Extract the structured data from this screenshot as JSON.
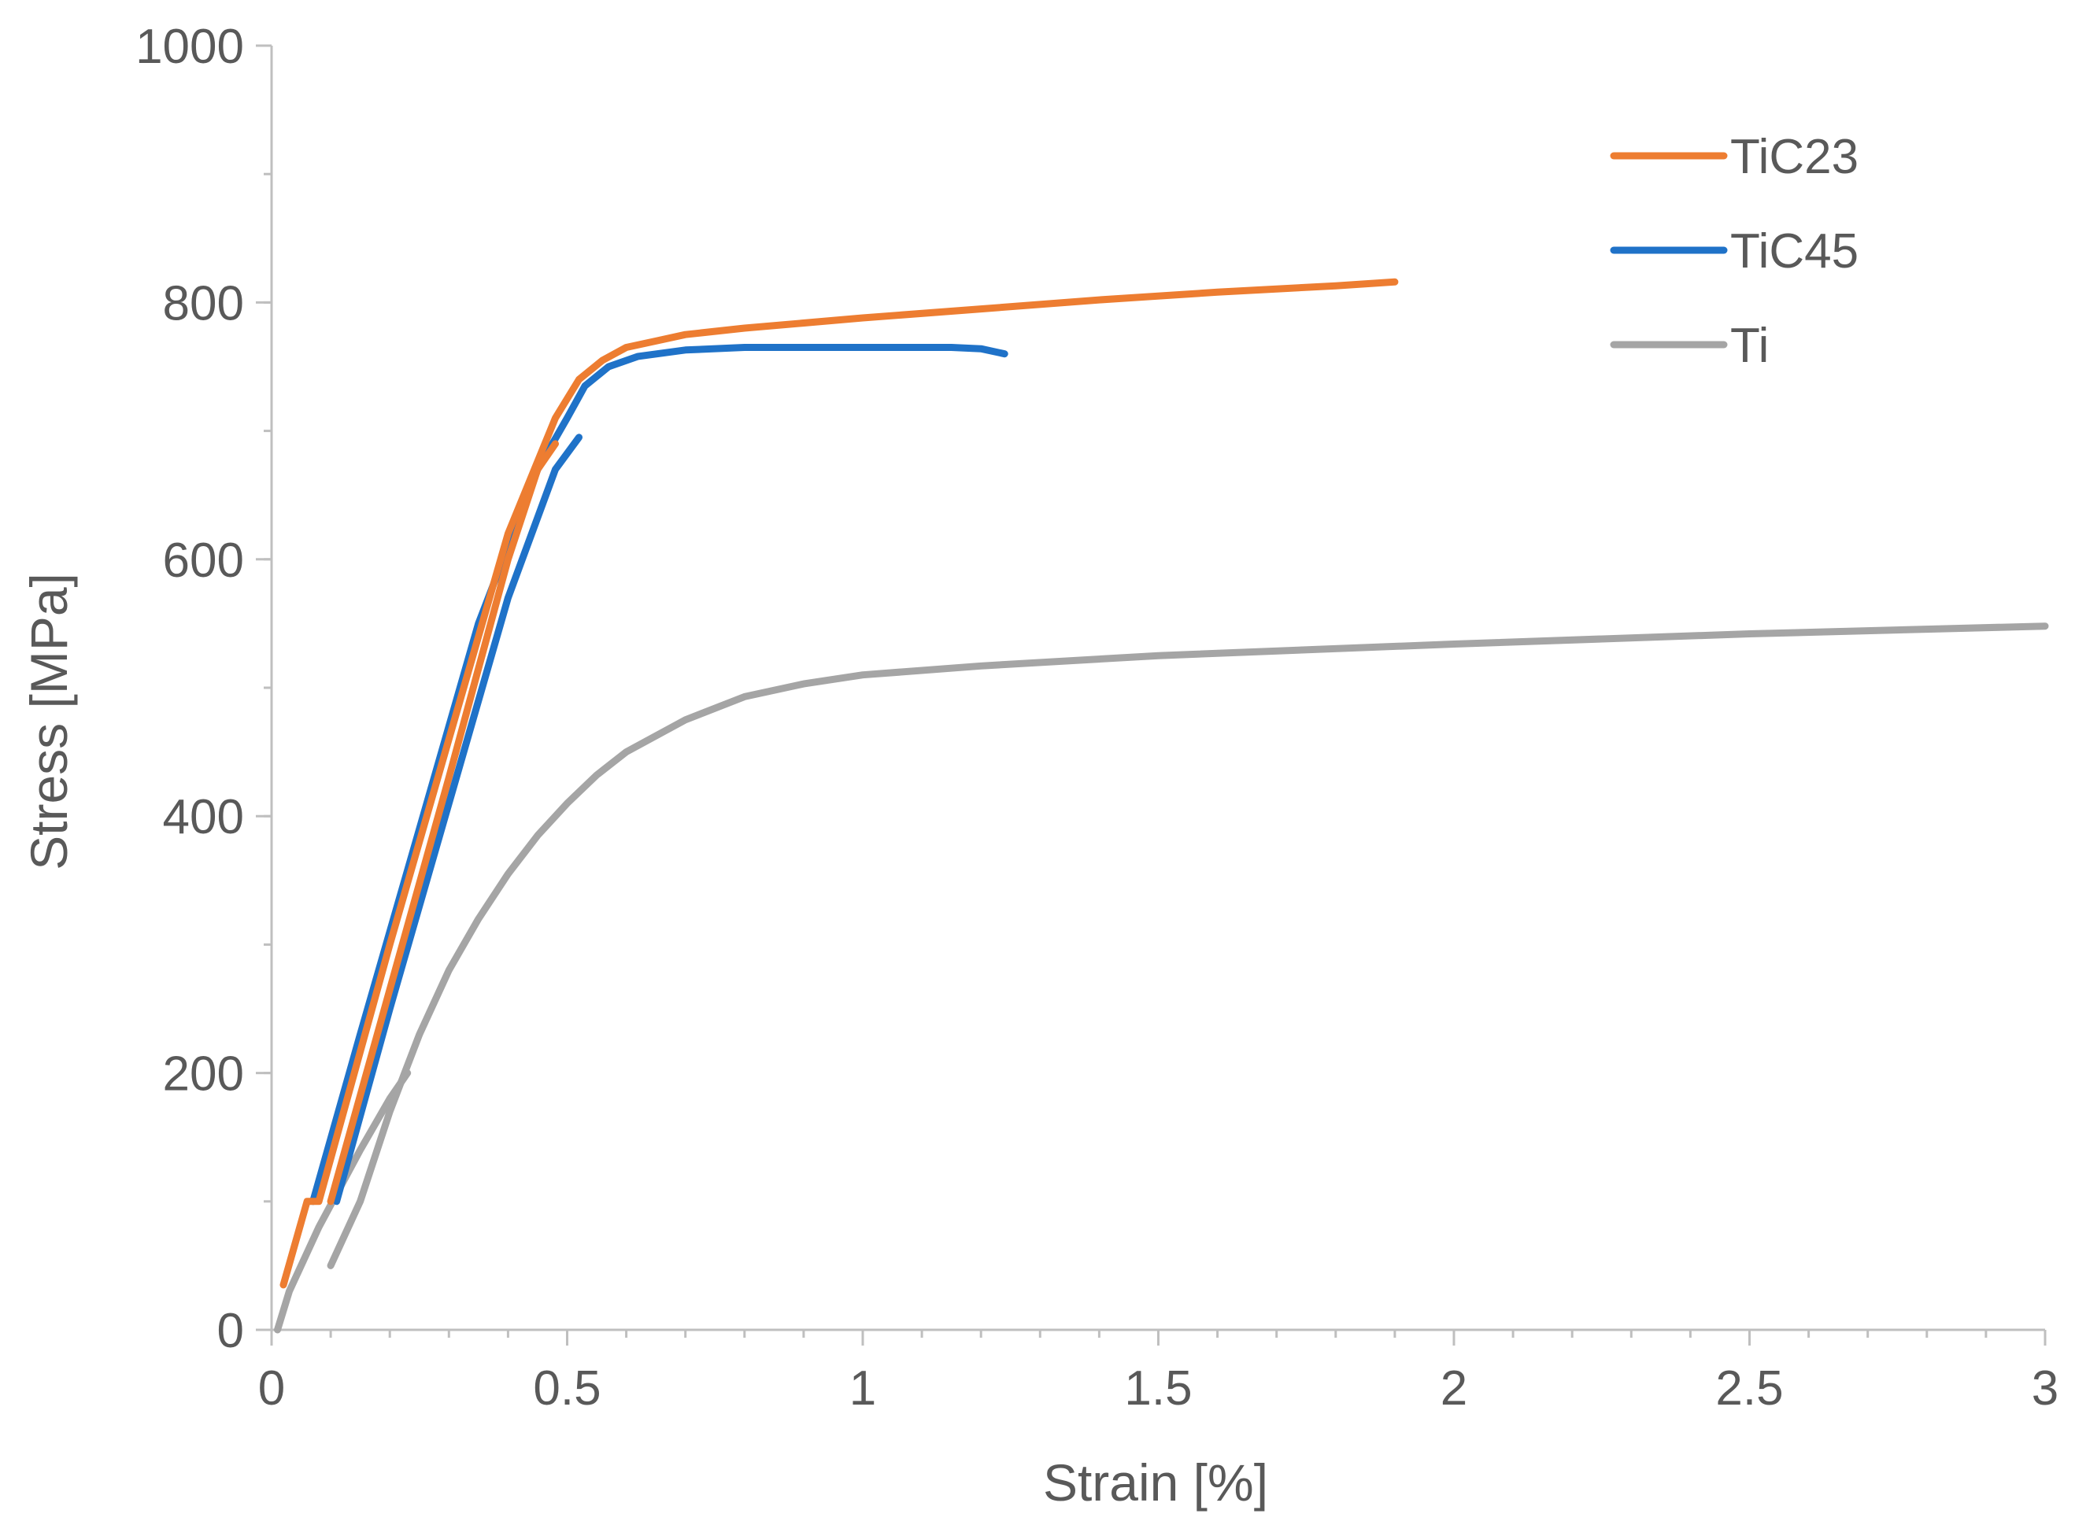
{
  "chart_data": {
    "type": "line",
    "title": "",
    "xlabel": "Strain [%]",
    "ylabel": "Stress [MPa]",
    "xlim": [
      0,
      3
    ],
    "ylim": [
      0,
      1000
    ],
    "xticks": [
      0,
      0.5,
      1,
      1.5,
      2,
      2.5,
      3
    ],
    "xtick_labels": [
      "0",
      "0.5",
      "1",
      "1.5",
      "2",
      "2.5",
      "3"
    ],
    "yticks": [
      0,
      200,
      400,
      600,
      800,
      1000
    ],
    "ytick_labels": [
      "0",
      "200",
      "400",
      "600",
      "800",
      "1000"
    ],
    "x_minor_step": 0.1,
    "y_minor_step": 100,
    "grid": false,
    "legend_position": "top-right",
    "series": [
      {
        "name": "TiC23",
        "color": "#ED7D31",
        "segments": [
          [
            [
              0.02,
              35
            ],
            [
              0.06,
              100
            ],
            [
              0.08,
              100
            ],
            [
              0.2,
              300
            ],
            [
              0.3,
              460
            ],
            [
              0.4,
              620
            ],
            [
              0.48,
              710
            ],
            [
              0.52,
              740
            ],
            [
              0.56,
              755
            ],
            [
              0.6,
              765
            ],
            [
              0.65,
              770
            ],
            [
              0.7,
              775
            ],
            [
              0.8,
              780
            ],
            [
              1.0,
              788
            ],
            [
              1.2,
              795
            ],
            [
              1.4,
              802
            ],
            [
              1.6,
              808
            ],
            [
              1.8,
              813
            ],
            [
              1.9,
              816
            ]
          ],
          [
            [
              0.1,
              100
            ],
            [
              0.2,
              265
            ],
            [
              0.3,
              430
            ],
            [
              0.4,
              600
            ],
            [
              0.45,
              670
            ],
            [
              0.48,
              690
            ]
          ]
        ]
      },
      {
        "name": "TiC45",
        "color": "#1F72C8",
        "segments": [
          [
            [
              0.07,
              100
            ],
            [
              0.15,
              230
            ],
            [
              0.25,
              390
            ],
            [
              0.35,
              550
            ],
            [
              0.45,
              670
            ],
            [
              0.5,
              710
            ],
            [
              0.53,
              735
            ],
            [
              0.57,
              750
            ],
            [
              0.62,
              758
            ],
            [
              0.7,
              763
            ],
            [
              0.8,
              765
            ],
            [
              1.0,
              765
            ],
            [
              1.15,
              765
            ],
            [
              1.2,
              764
            ],
            [
              1.24,
              760
            ]
          ],
          [
            [
              0.11,
              100
            ],
            [
              0.2,
              250
            ],
            [
              0.3,
              410
            ],
            [
              0.4,
              570
            ],
            [
              0.48,
              670
            ],
            [
              0.52,
              695
            ]
          ]
        ]
      },
      {
        "name": "Ti",
        "color": "#A5A5A5",
        "segments": [
          [
            [
              0.01,
              0
            ],
            [
              0.03,
              30
            ],
            [
              0.08,
              80
            ],
            [
              0.15,
              140
            ],
            [
              0.2,
              180
            ],
            [
              0.23,
              200
            ]
          ],
          [
            [
              0.1,
              50
            ],
            [
              0.15,
              100
            ],
            [
              0.2,
              170
            ],
            [
              0.25,
              230
            ],
            [
              0.3,
              280
            ],
            [
              0.35,
              320
            ],
            [
              0.4,
              355
            ],
            [
              0.45,
              385
            ],
            [
              0.5,
              410
            ],
            [
              0.55,
              432
            ],
            [
              0.6,
              450
            ],
            [
              0.7,
              475
            ],
            [
              0.8,
              493
            ],
            [
              0.9,
              503
            ],
            [
              1.0,
              510
            ],
            [
              1.2,
              517
            ],
            [
              1.5,
              525
            ],
            [
              2.0,
              534
            ],
            [
              2.5,
              542
            ],
            [
              3.0,
              548
            ]
          ]
        ]
      }
    ]
  }
}
